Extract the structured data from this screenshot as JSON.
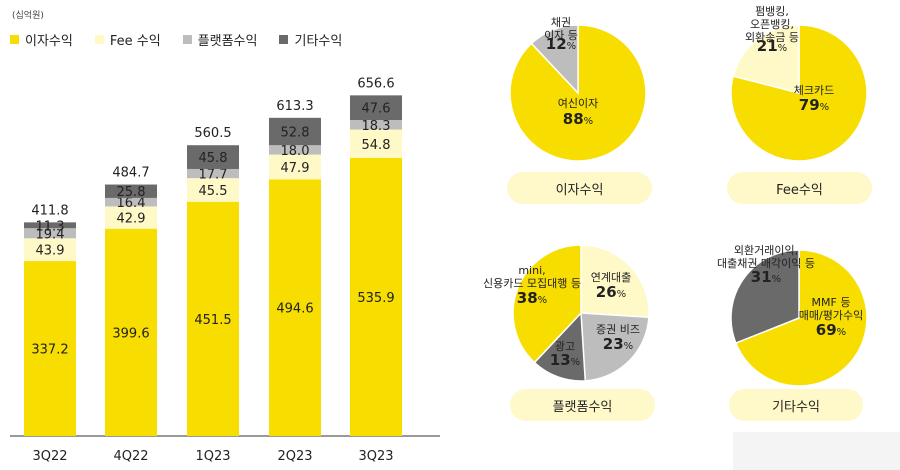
{
  "unit": "(십억원)",
  "colors": {
    "interest": "#f7de00",
    "fee": "#fff9c8",
    "platform": "#bdbdbd",
    "other": "#6a6a6a"
  },
  "chart_data": [
    {
      "type": "bar",
      "stacked": true,
      "categories": [
        "3Q22",
        "4Q22",
        "1Q23",
        "2Q23",
        "3Q23"
      ],
      "series": [
        {
          "name": "이자수익",
          "values": [
            337.2,
            399.6,
            451.5,
            494.6,
            535.9
          ]
        },
        {
          "name": "Fee 수익",
          "values": [
            43.9,
            42.9,
            45.5,
            47.9,
            54.8
          ]
        },
        {
          "name": "플랫폼수익",
          "values": [
            19.4,
            16.4,
            17.7,
            18.0,
            18.3
          ]
        },
        {
          "name": "기타수익",
          "values": [
            11.3,
            25.8,
            45.8,
            52.8,
            47.6
          ]
        }
      ],
      "totals": [
        411.8,
        484.7,
        560.5,
        613.3,
        656.6
      ],
      "ylim": [
        0,
        700
      ]
    },
    {
      "type": "pie",
      "title": "이자수익",
      "slices": [
        {
          "label": "여신이자",
          "lines": [
            "여신이자"
          ],
          "value": 88,
          "color": "interest"
        },
        {
          "label": "채권 이자 등",
          "lines": [
            "채권",
            "이자 등"
          ],
          "value": 12,
          "color": "platform"
        }
      ]
    },
    {
      "type": "pie",
      "title": "Fee수익",
      "slices": [
        {
          "label": "체크카드",
          "lines": [
            "체크카드"
          ],
          "value": 79,
          "color": "interest"
        },
        {
          "label": "펌뱅킹, 오픈뱅킹, 외환송금 등",
          "lines": [
            "펌뱅킹,",
            "오픈뱅킹,",
            "외환송금 등"
          ],
          "value": 21,
          "color": "fee"
        }
      ]
    },
    {
      "type": "pie",
      "title": "플랫폼수익",
      "slices": [
        {
          "label": "연계대출",
          "lines": [
            "연계대출"
          ],
          "value": 26,
          "color": "fee"
        },
        {
          "label": "증권 비즈",
          "lines": [
            "증권 비즈"
          ],
          "value": 23,
          "color": "platform"
        },
        {
          "label": "광고",
          "lines": [
            "광고"
          ],
          "value": 13,
          "color": "other"
        },
        {
          "label": "mini, 신용카드 모집대행 등",
          "lines": [
            "mini,",
            "신용카드 모집대행 등"
          ],
          "value": 38,
          "color": "interest"
        }
      ]
    },
    {
      "type": "pie",
      "title": "기타수익",
      "slices": [
        {
          "label": "MMF 등 매매/평가수익",
          "lines": [
            "MMF 등",
            "매매/평가수익"
          ],
          "value": 69,
          "color": "interest"
        },
        {
          "label": "외환거래이익, 대출채권 매각이익 등",
          "lines": [
            "외환거래이익,",
            "대출채권 매각이익 등"
          ],
          "value": 31,
          "color": "other"
        }
      ]
    }
  ]
}
